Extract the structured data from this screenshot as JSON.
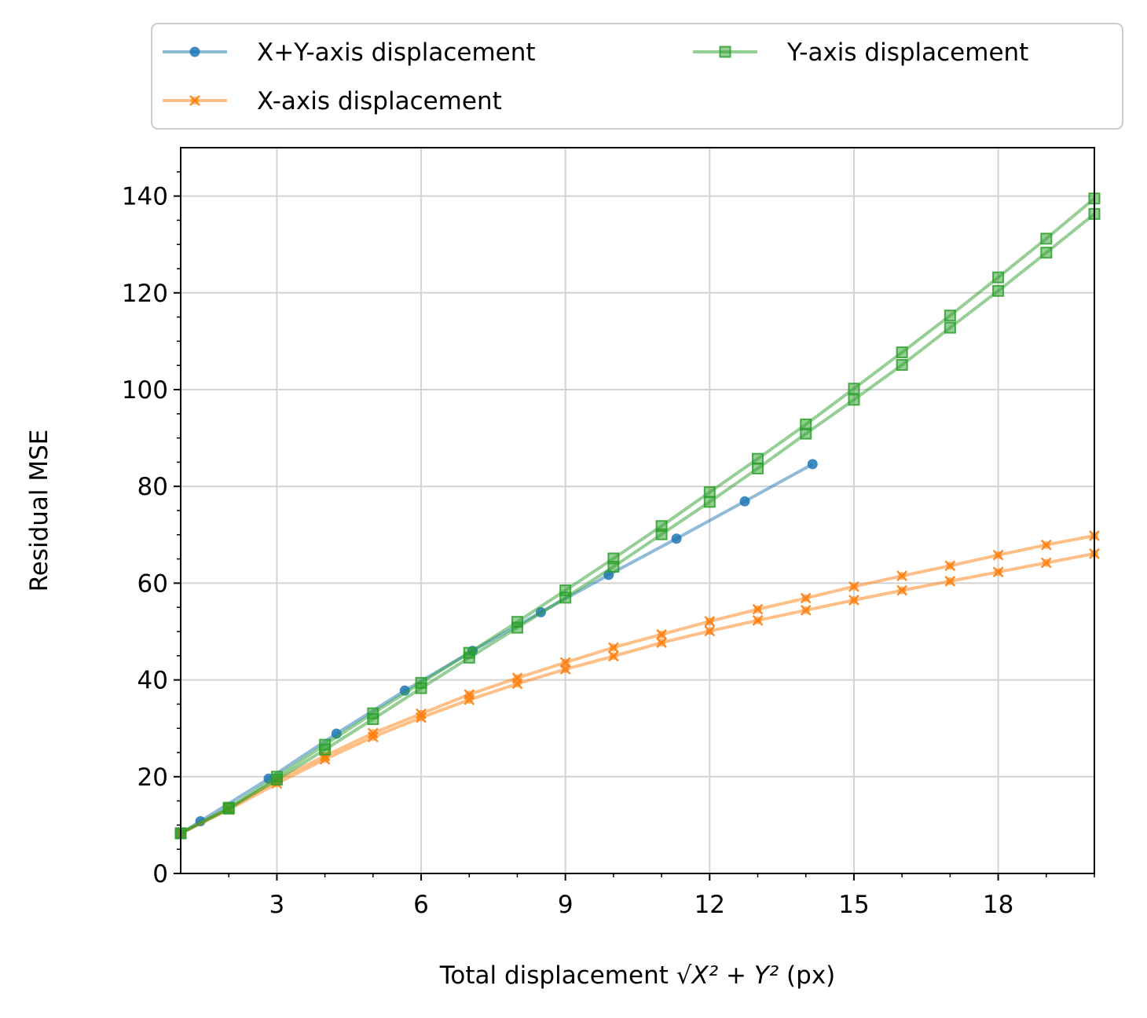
{
  "chart_data": {
    "type": "line",
    "xlabel_prefix": "Total displacement ",
    "xlabel_math": "√X² + Y²",
    "xlabel_suffix": " (px)",
    "ylabel": "Residual MSE",
    "xlim": [
      1,
      20
    ],
    "ylim": [
      0,
      150
    ],
    "xticks": [
      3,
      6,
      9,
      12,
      15,
      18
    ],
    "yticks": [
      0,
      20,
      40,
      60,
      80,
      100,
      120,
      140
    ],
    "grid": true,
    "legend_position": "top (above plot, 2 columns)",
    "series": [
      {
        "name": "X+Y-axis displacement",
        "color": "#1f77b4",
        "marker": "circle",
        "lines": [
          {
            "x": [
              1.0,
              1.41,
              2.83,
              4.24,
              5.66,
              7.07,
              8.49,
              9.9,
              11.31,
              12.73,
              14.14
            ],
            "y": [
              8.3,
              10.8,
              19.6,
              28.9,
              37.8,
              46.0,
              54.0,
              61.7,
              69.2,
              76.9,
              84.6
            ]
          }
        ]
      },
      {
        "name": "X-axis displacement",
        "color": "#ff7f0e",
        "marker": "x",
        "lines": [
          {
            "x": [
              1,
              2,
              3,
              4,
              5,
              6,
              7,
              8,
              9,
              10,
              11,
              12,
              13,
              14,
              15,
              16,
              17,
              18,
              19,
              20
            ],
            "y": [
              8.3,
              13.4,
              19.3,
              24.3,
              29.0,
              33.0,
              37.0,
              40.4,
              43.6,
              46.7,
              49.4,
              52.1,
              54.6,
              56.9,
              59.3,
              61.5,
              63.6,
              65.8,
              67.9,
              69.8
            ]
          },
          {
            "x": [
              1,
              2,
              3,
              4,
              5,
              6,
              7,
              8,
              9,
              10,
              11,
              12,
              13,
              14,
              15,
              16,
              17,
              18,
              19,
              20
            ],
            "y": [
              8.3,
              13.2,
              18.6,
              23.6,
              28.2,
              32.2,
              35.9,
              39.2,
              42.2,
              44.9,
              47.7,
              50.1,
              52.3,
              54.4,
              56.5,
              58.5,
              60.4,
              62.3,
              64.2,
              66.1
            ]
          }
        ]
      },
      {
        "name": "Y-axis displacement",
        "color": "#2ca02c",
        "marker": "square",
        "lines": [
          {
            "x": [
              1,
              2,
              3,
              4,
              5,
              6,
              7,
              8,
              9,
              10,
              11,
              12,
              13,
              14,
              15,
              16,
              17,
              18,
              19,
              20
            ],
            "y": [
              8.3,
              13.6,
              20.0,
              26.6,
              33.1,
              39.4,
              45.6,
              52.0,
              58.5,
              65.1,
              71.8,
              78.8,
              85.7,
              92.8,
              100.2,
              107.7,
              115.3,
              123.2,
              131.2,
              139.5
            ]
          },
          {
            "x": [
              1,
              2,
              3,
              4,
              5,
              6,
              7,
              8,
              9,
              10,
              11,
              12,
              13,
              14,
              15,
              16,
              17,
              18,
              19,
              20
            ],
            "y": [
              8.3,
              13.4,
              19.4,
              25.6,
              31.9,
              38.3,
              44.6,
              50.8,
              57.0,
              63.4,
              70.1,
              76.8,
              83.7,
              90.9,
              97.9,
              105.1,
              112.8,
              120.4,
              128.3,
              136.3
            ]
          }
        ]
      }
    ]
  }
}
